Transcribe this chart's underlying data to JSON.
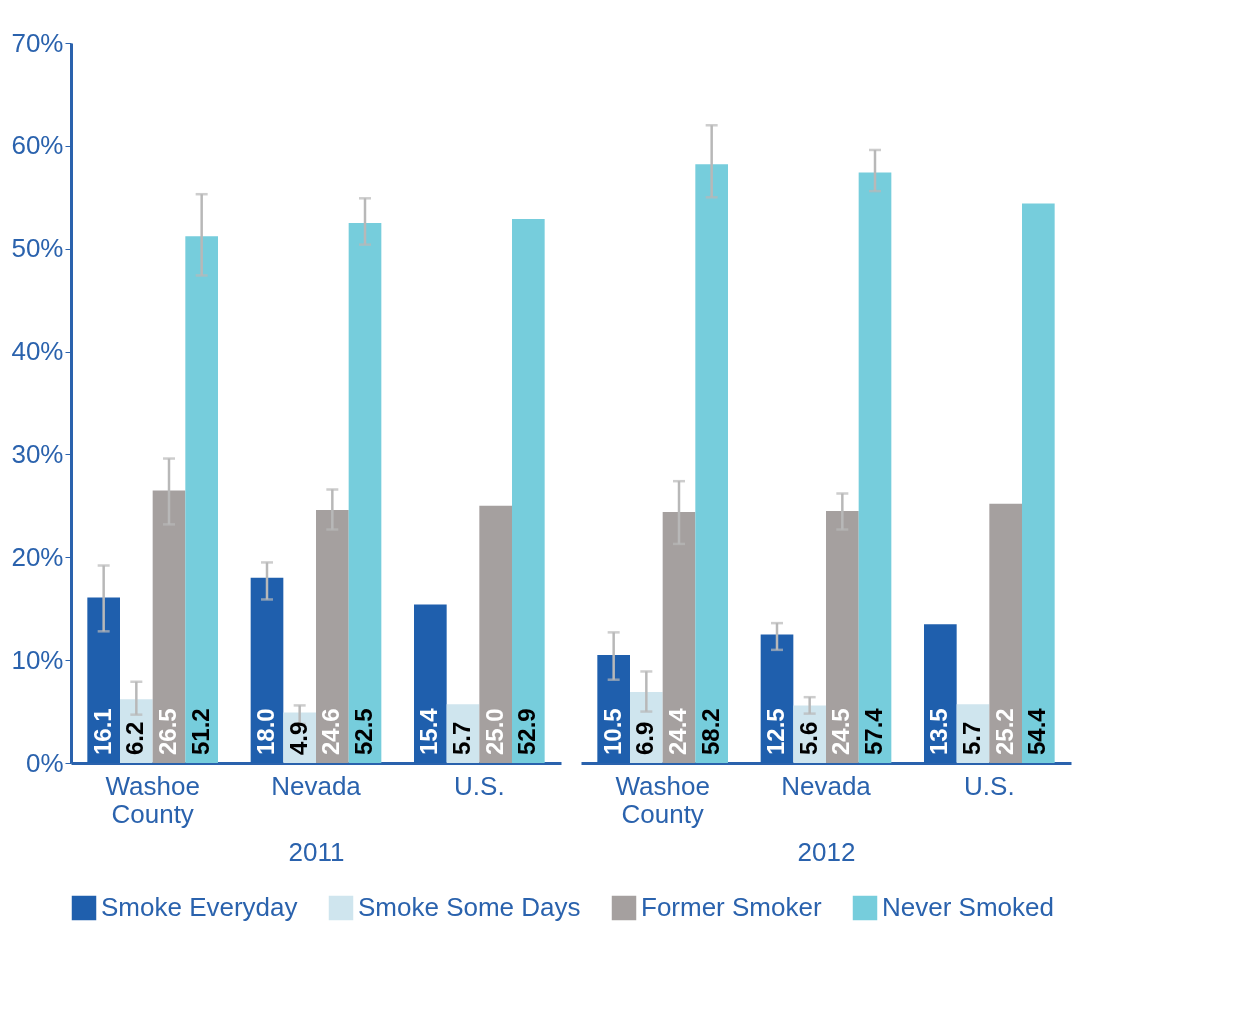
{
  "chart_data": [
    {
      "type": "bar",
      "xlabel": "2011",
      "categories": [
        "Washoe County",
        "Nevada",
        "U.S."
      ],
      "ylim": [
        0,
        70
      ],
      "yticks": [
        {
          "value": 0,
          "label": "0%"
        },
        {
          "value": 10,
          "label": "10%"
        },
        {
          "value": 20,
          "label": "20%"
        },
        {
          "value": 30,
          "label": "30%"
        },
        {
          "value": 40,
          "label": "40%"
        },
        {
          "value": 50,
          "label": "50%"
        },
        {
          "value": 60,
          "label": "60%"
        },
        {
          "value": 70,
          "label": "70%"
        }
      ],
      "grid": false,
      "legend": "bottom",
      "series": [
        {
          "name": "Smoke Everyday",
          "color": "#1f5fad",
          "values": [
            16.1,
            18.0,
            15.4
          ],
          "value_labels": [
            "16.1",
            "18.0",
            "15.4"
          ],
          "errors": [
            [
              12.8,
              19.2
            ],
            [
              15.9,
              19.5
            ],
            null
          ]
        },
        {
          "name": "Smoke Some Days",
          "color": "#cfe5ee",
          "values": [
            6.2,
            4.9,
            5.7
          ],
          "value_labels": [
            "6.2",
            "4.9",
            "5.7"
          ],
          "errors": [
            [
              4.7,
              7.9
            ],
            [
              3.8,
              5.6
            ],
            null
          ]
        },
        {
          "name": "Former Smoker",
          "color": "#a5a09f",
          "values": [
            26.5,
            24.6,
            25.0
          ],
          "value_labels": [
            "26.5",
            "24.6",
            "25.0"
          ],
          "errors": [
            [
              23.2,
              29.6
            ],
            [
              22.7,
              26.6
            ],
            null
          ]
        },
        {
          "name": "Never Smoked",
          "color": "#76cddc",
          "values": [
            51.2,
            52.5,
            52.9
          ],
          "value_labels": [
            "51.2",
            "52.5",
            "52.9"
          ],
          "errors": [
            [
              47.4,
              55.3
            ],
            [
              50.4,
              54.9
            ],
            null
          ]
        }
      ]
    },
    {
      "type": "bar",
      "xlabel": "2012",
      "categories": [
        "Washoe County",
        "Nevada",
        "U.S."
      ],
      "ylim": [
        0,
        70
      ],
      "tick_labels": "x",
      "grid": false,
      "legend": "bottom",
      "series": [
        {
          "name": "Smoke Everyday",
          "color": "#1f5fad",
          "values": [
            10.5,
            12.5,
            13.5
          ],
          "value_labels": [
            "10.5",
            "12.5",
            "13.5"
          ],
          "errors": [
            [
              8.1,
              12.7
            ],
            [
              11.0,
              13.6
            ],
            null
          ]
        },
        {
          "name": "Smoke Some Days",
          "color": "#cfe5ee",
          "values": [
            6.9,
            5.6,
            5.7
          ],
          "value_labels": [
            "6.9",
            "5.6",
            "5.7"
          ],
          "errors": [
            [
              5.0,
              8.9
            ],
            [
              4.8,
              6.4
            ],
            null
          ]
        },
        {
          "name": "Former Smoker",
          "color": "#a5a09f",
          "values": [
            24.4,
            24.5,
            25.2
          ],
          "value_labels": [
            "24.4",
            "24.5",
            "25.2"
          ],
          "errors": [
            [
              21.3,
              27.4
            ],
            [
              22.7,
              26.2
            ],
            null
          ]
        },
        {
          "name": "Never Smoked",
          "color": "#76cddc",
          "values": [
            58.2,
            57.4,
            54.4
          ],
          "value_labels": [
            "58.2",
            "57.4",
            "54.4"
          ],
          "errors": [
            [
              55.0,
              62.0
            ],
            [
              55.6,
              59.6
            ],
            null
          ]
        }
      ]
    }
  ]
}
